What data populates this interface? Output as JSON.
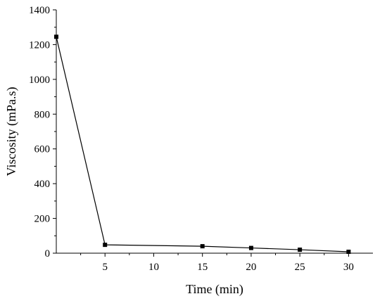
{
  "chart_data": {
    "type": "line",
    "title": "",
    "xlabel": "Time (min)",
    "ylabel": "Viscosity (mPa.s)",
    "xlim": [
      0,
      32.5
    ],
    "ylim": [
      0,
      1400
    ],
    "x_ticks": [
      5,
      10,
      15,
      20,
      25,
      30
    ],
    "y_ticks": [
      0,
      200,
      400,
      600,
      800,
      1000,
      1200,
      1400
    ],
    "grid": false,
    "legend": "none",
    "series": [
      {
        "x": [
          0,
          5,
          15,
          20,
          25,
          30
        ],
        "y": [
          1245,
          48,
          40,
          30,
          20,
          8
        ]
      }
    ],
    "colors": {
      "line": "#000000",
      "marker": "#000000",
      "axis": "#000000"
    }
  }
}
